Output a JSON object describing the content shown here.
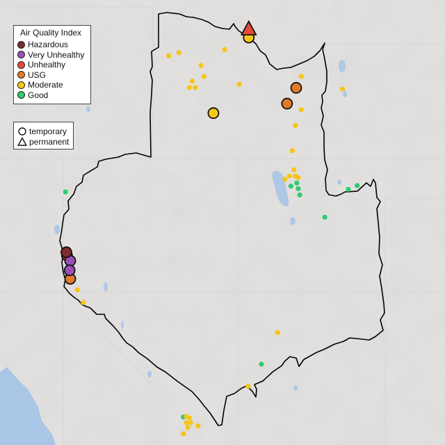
{
  "legend": {
    "title": "Air Quality Index",
    "categories": [
      {
        "key": "hazardous",
        "label": "Hazardous",
        "color": "#7e2d2d"
      },
      {
        "key": "very_unhealthy",
        "label": "Very Unhealthy",
        "color": "#9b4fb4"
      },
      {
        "key": "unhealthy",
        "label": "Unhealthy",
        "color": "#e84a3a"
      },
      {
        "key": "usg",
        "label": "USG",
        "color": "#e07b2a"
      },
      {
        "key": "moderate",
        "label": "Moderate",
        "color": "#f5c518"
      },
      {
        "key": "good",
        "label": "Good",
        "color": "#2ecc71"
      }
    ]
  },
  "monitor_type_legend": {
    "temporary_label": "temporary",
    "permanent_label": "permanent"
  },
  "map_style": {
    "background": "#e2e0de",
    "water": "#a9c6e6",
    "boundary": "#000000",
    "state_lines": "#d8d8d8"
  },
  "monitors": [
    {
      "lon": -115.68,
      "lat": 48.95,
      "aqi": "unhealthy",
      "type": "permanent"
    },
    {
      "lon": -115.68,
      "lat": 48.68,
      "aqi": "moderate",
      "type": "temporary"
    },
    {
      "lon": -114.07,
      "lat": 47.09,
      "aqi": "usg",
      "type": "temporary"
    },
    {
      "lon": -114.38,
      "lat": 46.59,
      "aqi": "usg",
      "type": "temporary"
    },
    {
      "lon": -116.88,
      "lat": 46.29,
      "aqi": "moderate",
      "type": "temporary"
    },
    {
      "lon": -121.87,
      "lat": 41.89,
      "aqi": "hazardous",
      "type": "temporary"
    },
    {
      "lon": -121.85,
      "lat": 41.79,
      "aqi": "unhealthy",
      "type": "temporary"
    },
    {
      "lon": -121.74,
      "lat": 41.62,
      "aqi": "very_unhealthy",
      "type": "temporary"
    },
    {
      "lon": -121.76,
      "lat": 41.32,
      "aqi": "very_unhealthy",
      "type": "temporary"
    },
    {
      "lon": -121.74,
      "lat": 41.05,
      "aqi": "usg",
      "type": "temporary"
    },
    {
      "lon": -116.5,
      "lat": 48.3,
      "aqi": "moderate",
      "type": "temporary"
    },
    {
      "lon": -118.4,
      "lat": 48.1,
      "aqi": "moderate",
      "type": "temporary"
    },
    {
      "lon": -117.3,
      "lat": 47.8,
      "aqi": "moderate",
      "type": "temporary"
    },
    {
      "lon": -117.2,
      "lat": 47.45,
      "aqi": "moderate",
      "type": "temporary"
    },
    {
      "lon": -117.6,
      "lat": 47.3,
      "aqi": "moderate",
      "type": "temporary"
    },
    {
      "lon": -117.7,
      "lat": 47.1,
      "aqi": "moderate",
      "type": "temporary"
    },
    {
      "lon": -117.5,
      "lat": 47.1,
      "aqi": "moderate",
      "type": "temporary"
    },
    {
      "lon": -116.0,
      "lat": 47.2,
      "aqi": "moderate",
      "type": "temporary"
    },
    {
      "lon": -113.9,
      "lat": 47.45,
      "aqi": "moderate",
      "type": "temporary"
    },
    {
      "lon": -112.5,
      "lat": 47.05,
      "aqi": "moderate",
      "type": "temporary"
    },
    {
      "lon": -113.9,
      "lat": 46.4,
      "aqi": "moderate",
      "type": "temporary"
    },
    {
      "lon": -114.1,
      "lat": 45.9,
      "aqi": "moderate",
      "type": "temporary"
    },
    {
      "lon": -118.05,
      "lat": 48.2,
      "aqi": "moderate",
      "type": "temporary"
    },
    {
      "lon": -114.2,
      "lat": 45.1,
      "aqi": "moderate",
      "type": "temporary"
    },
    {
      "lon": -114.15,
      "lat": 44.5,
      "aqi": "moderate",
      "type": "temporary"
    },
    {
      "lon": -114.1,
      "lat": 44.3,
      "aqi": "moderate",
      "type": "temporary"
    },
    {
      "lon": -114.3,
      "lat": 44.3,
      "aqi": "moderate",
      "type": "temporary"
    },
    {
      "lon": -114.0,
      "lat": 44.25,
      "aqi": "moderate",
      "type": "temporary"
    },
    {
      "lon": -114.45,
      "lat": 44.2,
      "aqi": "moderate",
      "type": "temporary"
    },
    {
      "lon": -114.05,
      "lat": 44.08,
      "aqi": "good",
      "type": "temporary"
    },
    {
      "lon": -114.0,
      "lat": 43.9,
      "aqi": "good",
      "type": "temporary"
    },
    {
      "lon": -114.25,
      "lat": 43.98,
      "aqi": "good",
      "type": "temporary"
    },
    {
      "lon": -113.95,
      "lat": 43.7,
      "aqi": "good",
      "type": "temporary"
    },
    {
      "lon": -112.3,
      "lat": 43.88,
      "aqi": "good",
      "type": "temporary"
    },
    {
      "lon": -112.0,
      "lat": 44.0,
      "aqi": "good",
      "type": "temporary"
    },
    {
      "lon": -113.1,
      "lat": 43.0,
      "aqi": "good",
      "type": "temporary"
    },
    {
      "lon": -121.9,
      "lat": 43.8,
      "aqi": "good",
      "type": "temporary"
    },
    {
      "lon": -121.5,
      "lat": 40.7,
      "aqi": "moderate",
      "type": "temporary"
    },
    {
      "lon": -121.3,
      "lat": 40.3,
      "aqi": "moderate",
      "type": "temporary"
    },
    {
      "lon": -114.7,
      "lat": 39.35,
      "aqi": "moderate",
      "type": "temporary"
    },
    {
      "lon": -115.25,
      "lat": 38.35,
      "aqi": "good",
      "type": "temporary"
    },
    {
      "lon": -115.7,
      "lat": 37.65,
      "aqi": "moderate",
      "type": "temporary"
    },
    {
      "lon": -117.8,
      "lat": 36.7,
      "aqi": "moderate",
      "type": "temporary"
    },
    {
      "lon": -117.7,
      "lat": 36.65,
      "aqi": "moderate",
      "type": "temporary"
    },
    {
      "lon": -117.8,
      "lat": 36.5,
      "aqi": "moderate",
      "type": "temporary"
    },
    {
      "lon": -117.65,
      "lat": 36.5,
      "aqi": "moderate",
      "type": "temporary"
    },
    {
      "lon": -117.75,
      "lat": 36.35,
      "aqi": "moderate",
      "type": "temporary"
    },
    {
      "lon": -117.9,
      "lat": 36.68,
      "aqi": "good",
      "type": "temporary"
    },
    {
      "lon": -117.4,
      "lat": 36.4,
      "aqi": "moderate",
      "type": "temporary"
    },
    {
      "lon": -117.9,
      "lat": 36.15,
      "aqi": "moderate",
      "type": "temporary"
    }
  ]
}
